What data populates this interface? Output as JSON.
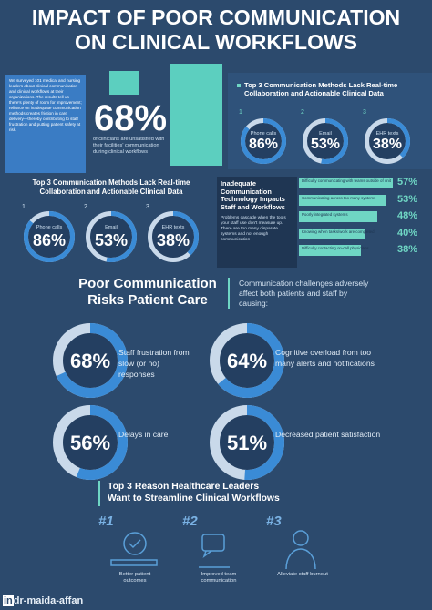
{
  "title": {
    "line1": "IMPACT OF POOR COMMUNICATION",
    "line2": "ON CLINICAL WORKFLOWS"
  },
  "survey": {
    "intro": "We surveyed 101 medical and nursing leaders about clinical communication and clinical workflows at their organizations. The results tell us there's plenty of room for improvement; reliance on inadequate communication methods creates friction in care delivery—thereby contributing to staff frustration and putting patient safety at risk.",
    "stat": "68%",
    "stat_caption": "of clinicians are unsatisfied with their facilities' communication during clinical workflows"
  },
  "methods_right": {
    "heading": "Top 3 Communication Methods Lack Real-time Collaboration and Actionable Clinical Data",
    "items": [
      {
        "number": "1",
        "name": "Phone calls",
        "percent": {
          "value": 86,
          "label": "86%"
        }
      },
      {
        "number": "2",
        "name": "Email",
        "percent": {
          "value": 53,
          "label": "53%"
        }
      },
      {
        "number": "3",
        "name": "EHR texts",
        "percent": {
          "value": 38,
          "label": "38%"
        }
      }
    ]
  },
  "methods_left": {
    "heading": "Top 3 Communication Methods Lack Real-time Collaboration and Actionable Clinical Data",
    "items": [
      {
        "number": "1.",
        "name": "Phone calls",
        "percent": {
          "value": 86,
          "label": "86%"
        }
      },
      {
        "number": "2.",
        "name": "Email",
        "percent": {
          "value": 53,
          "label": "53%"
        }
      },
      {
        "number": "3.",
        "name": "EHR texts",
        "percent": {
          "value": 38,
          "label": "38%"
        }
      }
    ]
  },
  "technology": {
    "heading": "Inadequate Communication Technology Impacts Staff and Workflows",
    "text": "Problems cascade when the tools your staff use don't measure up. There are too many disparate systems and not enough communication",
    "bars": [
      {
        "label": "Difficulty communicating with teams outside of unit",
        "percent": {
          "value": 57,
          "label": "57%"
        }
      },
      {
        "label": "Communicating across too many systems",
        "percent": {
          "value": 53,
          "label": "53%"
        }
      },
      {
        "label": "Poorly integrated systems",
        "percent": {
          "value": 48,
          "label": "48%"
        }
      },
      {
        "label": "Knowing when tasks/work are completed",
        "percent": {
          "value": 40,
          "label": "40%"
        }
      },
      {
        "label": "Difficulty contacting on-call physicians",
        "percent": {
          "value": 38,
          "label": "38%"
        }
      }
    ]
  },
  "patient_care": {
    "heading_line1": "Poor Communication",
    "heading_line2": "Risks Patient Care",
    "intro": "Communication challenges adversely affect both patients and staff by causing:",
    "items": [
      {
        "percent": {
          "value": 68,
          "label": "68%"
        },
        "text": "Staff frustration from slow (or no) responses"
      },
      {
        "percent": {
          "value": 64,
          "label": "64%"
        },
        "text": "Cognitive overload from too many alerts and notifications"
      },
      {
        "percent": {
          "value": 56,
          "label": "56%"
        },
        "text": "Delays in care"
      },
      {
        "percent": {
          "value": 51,
          "label": "51%"
        },
        "text": "Decreased patient satisfaction"
      }
    ]
  },
  "reasons": {
    "heading_line1": "Top 3 Reason Healthcare Leaders",
    "heading_line2": "Want to Streamline Clinical Workflows",
    "items": [
      {
        "number": "#1",
        "caption": "Better patient outcomes"
      },
      {
        "number": "#2",
        "caption": "Improved team communication"
      },
      {
        "number": "#3",
        "caption": "Alleviate staff burnout"
      }
    ]
  },
  "watermark": {
    "icon": "in",
    "text": "dr-maida-affan"
  }
}
